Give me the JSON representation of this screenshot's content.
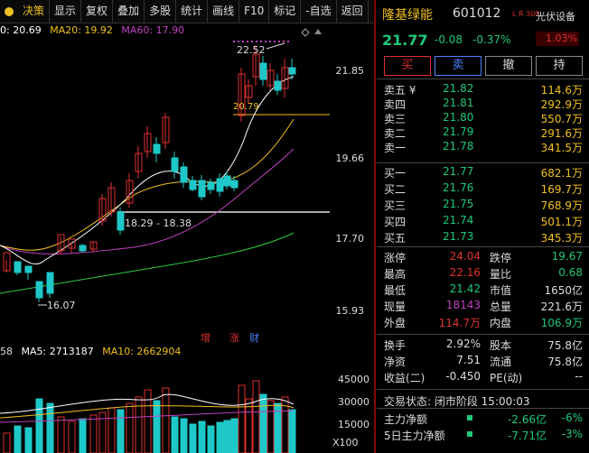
{
  "toolbar": {
    "items": [
      "决策",
      "显示",
      "复权",
      "叠加",
      "多股",
      "统计",
      "画线",
      "F10",
      "标记",
      "-自选",
      "返回"
    ],
    "active_index": 0
  },
  "ma_legend": {
    "ma10": "0: 20.69",
    "ma20": "MA20: 19.92",
    "ma60": "MA60: 17.90"
  },
  "price_axis": [
    "21.85",
    "19.66",
    "17.70",
    "15.93"
  ],
  "annotations": {
    "high": "22.52",
    "line_price": "20.79",
    "range": "18.29 - 18.38",
    "low": "16.07"
  },
  "markers": [
    "增",
    "涨",
    "财"
  ],
  "vol_legend": {
    "vol": "58",
    "ma5": "MA5: 2713187",
    "ma10": "MA10: 2662904"
  },
  "vol_axis": [
    "45000",
    "30000",
    "15000"
  ],
  "vol_unit": "X100",
  "stock": {
    "name": "隆基绿能",
    "code": "601012",
    "lr": "L R 300",
    "sector": "光伏设备",
    "sector_pct": "1.03%",
    "price": "21.77",
    "change": "-0.08",
    "pct": "-0.37%"
  },
  "trade_buttons": [
    "买",
    "卖",
    "撤",
    "持"
  ],
  "asks": [
    {
      "label": "卖五 ¥",
      "price": "21.82",
      "vol": "114.6万"
    },
    {
      "label": "卖四",
      "price": "21.81",
      "vol": "292.9万"
    },
    {
      "label": "卖三",
      "price": "21.80",
      "vol": "550.7万"
    },
    {
      "label": "卖二",
      "price": "21.79",
      "vol": "291.6万"
    },
    {
      "label": "卖一",
      "price": "21.78",
      "vol": "341.5万"
    }
  ],
  "bids": [
    {
      "label": "买一",
      "price": "21.77",
      "vol": "682.1万"
    },
    {
      "label": "买二",
      "price": "21.76",
      "vol": "169.7万"
    },
    {
      "label": "买三",
      "price": "21.75",
      "vol": "768.9万"
    },
    {
      "label": "买四",
      "price": "21.74",
      "vol": "501.1万"
    },
    {
      "label": "买五",
      "price": "21.73",
      "vol": "345.3万"
    }
  ],
  "stats": [
    {
      "l1": "涨停",
      "v1": "24.04",
      "c1": "red",
      "l2": "跌停",
      "v2": "19.67",
      "c2": "green"
    },
    {
      "l1": "最高",
      "v1": "22.16",
      "c1": "red",
      "l2": "量比",
      "v2": "0.68",
      "c2": "green"
    },
    {
      "l1": "最低",
      "v1": "21.42",
      "c1": "green",
      "l2": "市值",
      "v2": "1650亿",
      "c2": "white"
    },
    {
      "l1": "现量",
      "v1": "18143",
      "c1": "purple",
      "l2": "总量",
      "v2": "221.6万",
      "c2": "white"
    },
    {
      "l1": "外盘",
      "v1": "114.7万",
      "c1": "red",
      "l2": "内盘",
      "v2": "106.9万",
      "c2": "green"
    }
  ],
  "stats2": [
    {
      "l1": "换手",
      "v1": "2.92%",
      "l2": "股本",
      "v2": "75.8亿"
    },
    {
      "l1": "净资",
      "v1": "7.51",
      "l2": "流通",
      "v2": "75.8亿"
    },
    {
      "l1": "收益(二)",
      "v1": "-0.450",
      "l2": "PE(动)",
      "v2": "--"
    }
  ],
  "status": "交易状态: 闭市阶段 15:00:03",
  "flow": [
    {
      "label": "主力净额",
      "val": "-2.66亿",
      "pct": "-6%"
    },
    {
      "label": "5日主力净额",
      "val": "-7.71亿",
      "pct": "-3%"
    }
  ],
  "colors": {
    "up": "#e03030",
    "down": "#1ec87a",
    "accent": "#f0c020",
    "ma10": "#ffffff",
    "ma20": "#f0c020",
    "ma60": "#c040c0",
    "ma_long": "#2ecc40"
  }
}
